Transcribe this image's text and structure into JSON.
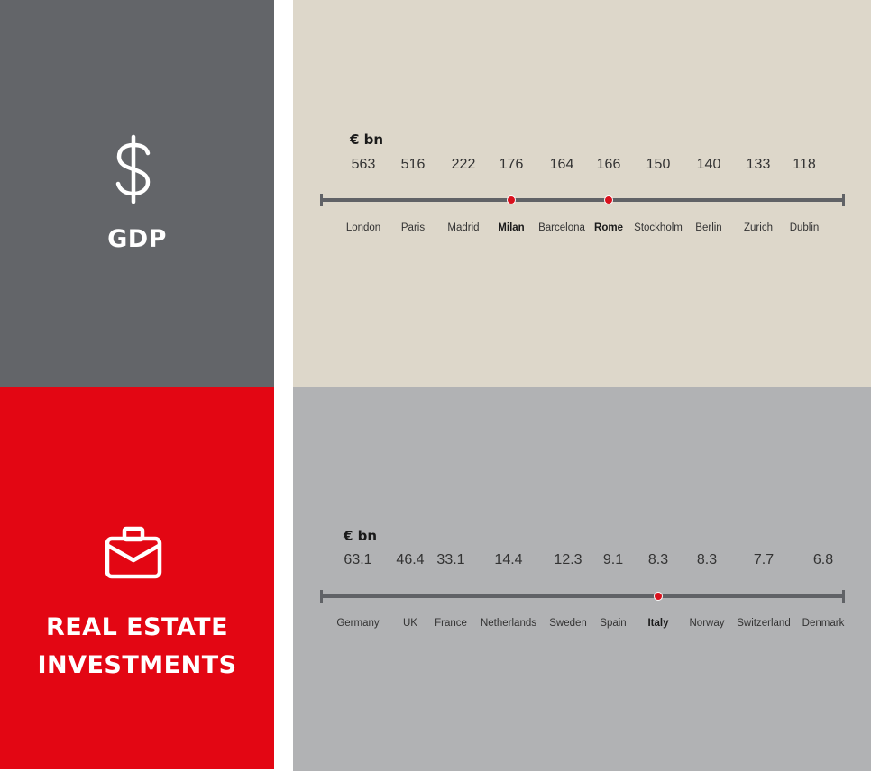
{
  "chart_data": [
    {
      "type": "table",
      "title": "GDP",
      "unit": "€ bn",
      "categories": [
        "London",
        "Paris",
        "Madrid",
        "Milan",
        "Barcelona",
        "Rome",
        "Stockholm",
        "Berlin",
        "Zurich",
        "Dublin"
      ],
      "values": [
        "563",
        "516",
        "222",
        "176",
        "164",
        "166",
        "150",
        "140",
        "133",
        "118"
      ],
      "highlighted": [
        "Milan",
        "Rome"
      ],
      "colors": {
        "panel": "#636569",
        "background": "#ddd7ca",
        "marker": "#d9111d",
        "axis": "#606266"
      }
    },
    {
      "type": "table",
      "title": "REAL ESTATE INVESTMENTS",
      "title_lines": [
        "REAL ESTATE",
        "INVESTMENTS"
      ],
      "unit": "€ bn",
      "categories": [
        "Germany",
        "UK",
        "France",
        "Netherlands",
        "Sweden",
        "Spain",
        "Italy",
        "Norway",
        "Switzerland",
        "Denmark"
      ],
      "values": [
        "63.1",
        "46.4",
        "33.1",
        "14.4",
        "12.3",
        "9.1",
        "8.3",
        "8.3",
        "7.7",
        "6.8"
      ],
      "highlighted": [
        "Italy"
      ],
      "colors": {
        "panel": "#e30613",
        "background": "#b1b2b4",
        "marker": "#d9111d",
        "axis": "#606266"
      }
    }
  ],
  "icons": {
    "gdp": "dollar-icon",
    "real_estate": "briefcase-icon"
  }
}
